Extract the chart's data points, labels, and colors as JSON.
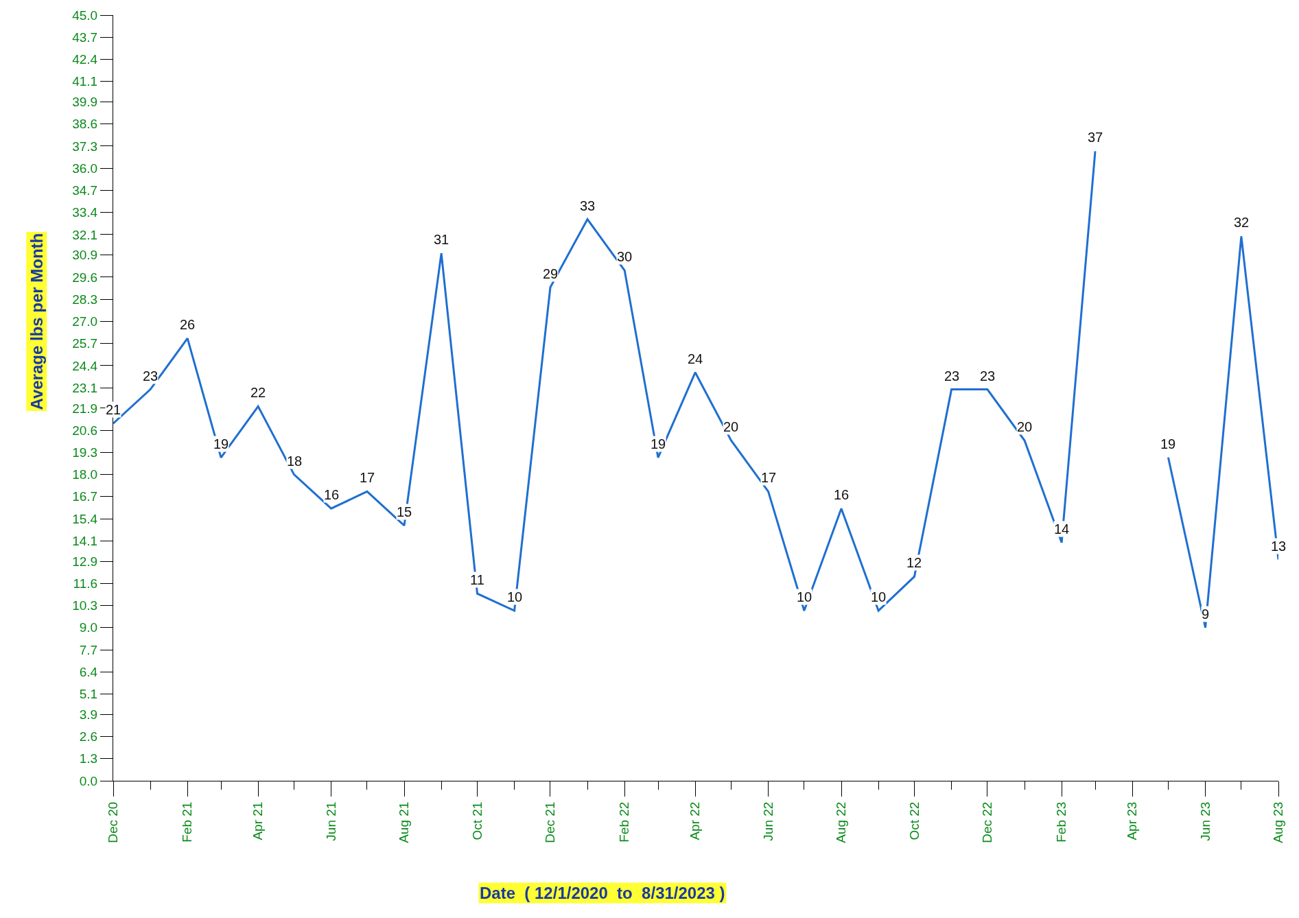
{
  "chart_data": {
    "type": "line",
    "xlabel": "Date  ( 12/1/2020  to  8/31/2023 )",
    "ylabel": "Average lbs per Month",
    "x": [
      "2020-12",
      "2021-01",
      "2021-02",
      "2021-03",
      "2021-04",
      "2021-05",
      "2021-06",
      "2021-07",
      "2021-08",
      "2021-09",
      "2021-10",
      "2021-11",
      "2021-12",
      "2022-01",
      "2022-02",
      "2022-03",
      "2022-04",
      "2022-05",
      "2022-06",
      "2022-07",
      "2022-08",
      "2022-09",
      "2022-10",
      "2022-11",
      "2022-12",
      "2023-01",
      "2023-02",
      "2023-03",
      "2023-04",
      "2023-05",
      "2023-06",
      "2023-07",
      "2023-08"
    ],
    "series": [
      {
        "color": "#1f6fd1",
        "values": [
          21,
          23,
          26,
          19,
          22,
          18,
          16,
          17,
          15,
          31,
          11,
          10,
          29,
          33,
          30,
          19,
          24,
          20,
          17,
          10,
          16,
          10,
          12,
          23,
          23,
          20,
          14,
          37,
          null,
          19,
          9,
          32,
          13
        ]
      }
    ],
    "data_labels": true,
    "marker": "none",
    "line_style": "solid",
    "xlim": [
      "2020-12",
      "2023-08"
    ],
    "xticks": [
      {
        "value": "2020-12",
        "label": "Dec 20"
      },
      {
        "value": "2021-02",
        "label": "Feb 21"
      },
      {
        "value": "2021-04",
        "label": "Apr 21"
      },
      {
        "value": "2021-06",
        "label": "Jun 21"
      },
      {
        "value": "2021-08",
        "label": "Aug 21"
      },
      {
        "value": "2021-10",
        "label": "Oct 21"
      },
      {
        "value": "2021-12",
        "label": "Dec 21"
      },
      {
        "value": "2022-02",
        "label": "Feb 22"
      },
      {
        "value": "2022-04",
        "label": "Apr 22"
      },
      {
        "value": "2022-06",
        "label": "Jun 22"
      },
      {
        "value": "2022-08",
        "label": "Aug 22"
      },
      {
        "value": "2022-10",
        "label": "Oct 22"
      },
      {
        "value": "2022-12",
        "label": "Dec 22"
      },
      {
        "value": "2023-02",
        "label": "Feb 23"
      },
      {
        "value": "2023-04",
        "label": "Apr 23"
      },
      {
        "value": "2023-06",
        "label": "Jun 23"
      },
      {
        "value": "2023-08",
        "label": "Aug 23"
      }
    ],
    "ylim": [
      0,
      45
    ],
    "yticks": [
      {
        "value": 0,
        "label": "0.0"
      },
      1.3,
      2.6,
      3.9,
      5.1,
      6.4,
      7.7,
      {
        "value": 9,
        "label": "9.0"
      },
      10.3,
      11.6,
      12.9,
      14.1,
      15.4,
      16.7,
      {
        "value": 18,
        "label": "18.0"
      },
      19.3,
      20.6,
      21.9,
      23.1,
      24.4,
      25.7,
      {
        "value": 27,
        "label": "27.0"
      },
      28.3,
      29.6,
      30.9,
      32.1,
      33.4,
      34.7,
      {
        "value": 36,
        "label": "36.0"
      },
      37.3,
      38.6,
      39.9,
      41.1,
      42.4,
      43.7,
      {
        "value": 45,
        "label": "45.0"
      }
    ]
  }
}
